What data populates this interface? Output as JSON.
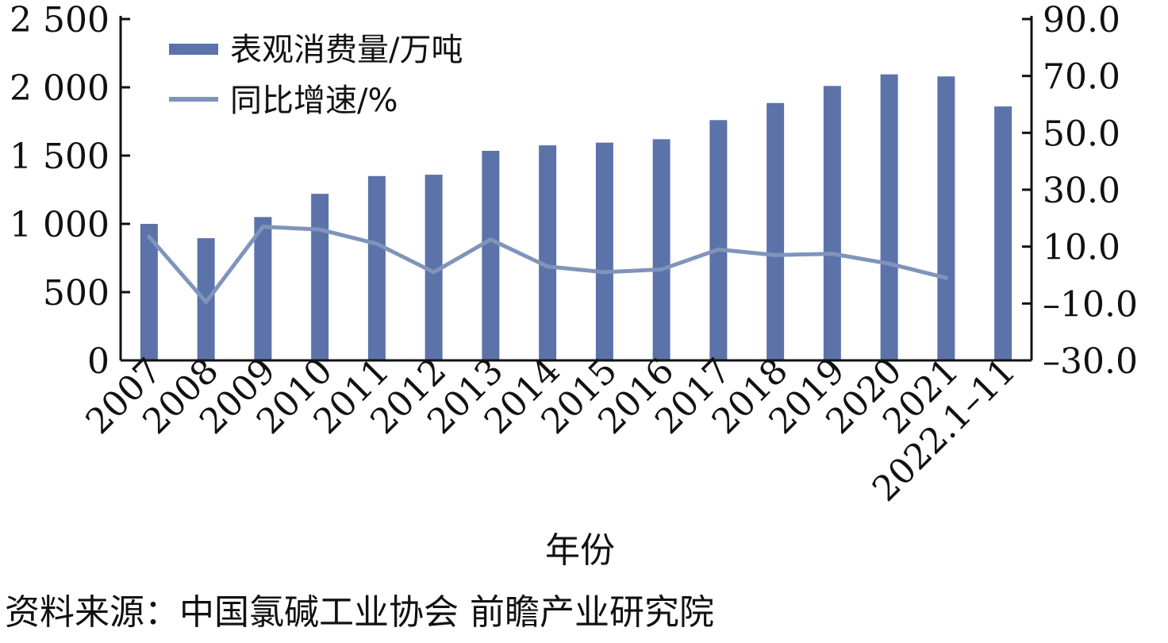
{
  "chart_data": {
    "type": "bar",
    "categories": [
      "2007",
      "2008",
      "2009",
      "2010",
      "2011",
      "2012",
      "2013",
      "2014",
      "2015",
      "2016",
      "2017",
      "2018",
      "2019",
      "2020",
      "2021",
      "2022.1–11"
    ],
    "series": [
      {
        "name": "表观消费量/万吨",
        "type": "bar",
        "axis": "left",
        "color": "#5b73a8",
        "values": [
          1000,
          895,
          1050,
          1220,
          1350,
          1360,
          1535,
          1575,
          1595,
          1620,
          1760,
          1885,
          2010,
          2095,
          2080,
          1860
        ]
      },
      {
        "name": "同比增速/%",
        "type": "line",
        "axis": "right",
        "color": "#8094bb",
        "values": [
          13.5,
          -9.5,
          17.0,
          16.0,
          11.0,
          1.0,
          12.5,
          3.0,
          1.0,
          2.0,
          9.0,
          7.0,
          7.5,
          4.0,
          -1.0,
          null
        ]
      }
    ],
    "xlabel": "年份",
    "ylabel": "",
    "ylim_left": [
      0,
      2500
    ],
    "yticks_left": [
      0,
      500,
      1000,
      1500,
      2000,
      2500
    ],
    "ytick_labels_left": [
      "0",
      "500",
      "1 000",
      "1 500",
      "2 000",
      "2 500"
    ],
    "ylim_right": [
      -30,
      90
    ],
    "yticks_right": [
      -30,
      -10,
      10,
      30,
      50,
      70,
      90
    ],
    "ytick_labels_right": [
      "–30.0",
      "–10.0",
      "10.0",
      "30.0",
      "50.0",
      "70.0",
      "90.0"
    ],
    "legend_position": "top-left",
    "grid": false
  },
  "source_text": "资料来源：中国氯碱工业协会 前瞻产业研究院"
}
